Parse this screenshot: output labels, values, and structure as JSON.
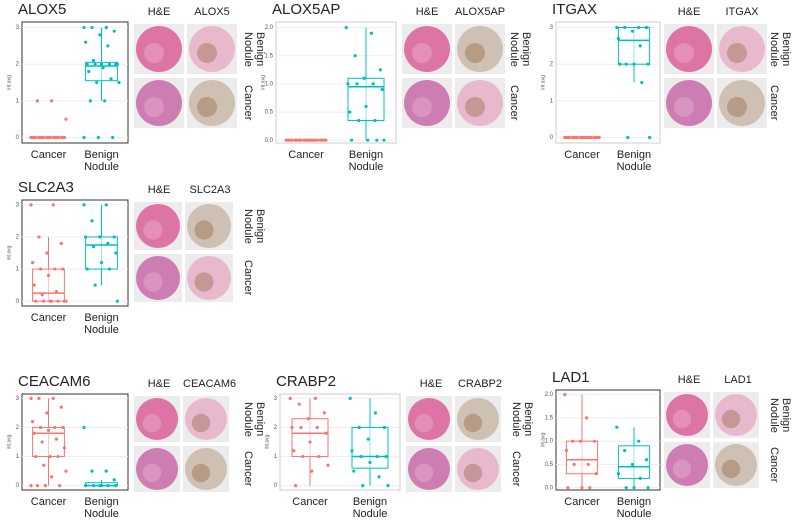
{
  "chart_data": [
    {
      "type": "box",
      "title": "ALOX5",
      "ylabel": "int.avg",
      "categories": [
        "Cancer",
        "Benign Nodule"
      ],
      "ylim": [
        -0.15,
        3.15
      ],
      "yticks": [
        0,
        1,
        2,
        3
      ],
      "grid": true,
      "boxes": [
        {
          "color": "#f8766d",
          "q1": 0,
          "median": 0,
          "q3": 0,
          "whisker_low": 0,
          "whisker_high": 0,
          "points": [
            0,
            0,
            0,
            0,
            0,
            0,
            0,
            0,
            0,
            0,
            0,
            0,
            0,
            0,
            0,
            0,
            0,
            0,
            0.5,
            1,
            1
          ]
        },
        {
          "color": "#00bfc4",
          "q1": 1.55,
          "median": 1.95,
          "q3": 2.05,
          "whisker_low": 1,
          "whisker_high": 3,
          "points": [
            3,
            3,
            3,
            2.9,
            2.8,
            2.6,
            2.5,
            2.1,
            2,
            2,
            2,
            2,
            2,
            2,
            1.9,
            1.8,
            1.6,
            1.5,
            1.5,
            1,
            1,
            0,
            0,
            0
          ]
        }
      ],
      "image_columns": [
        "H&E",
        "ALOX5"
      ],
      "image_rows": [
        "Benign Nodule",
        "Cancer"
      ]
    },
    {
      "type": "box",
      "title": "ALOX5AP",
      "ylabel": "int.avg",
      "categories": [
        "Cancer",
        "Benign Nodule"
      ],
      "ylim": [
        -0.05,
        2.1
      ],
      "yticks": [
        {
          "value": 0,
          "label": "0.0"
        },
        {
          "value": 0.5,
          "label": "0.5"
        },
        {
          "value": 1,
          "label": "1.0"
        },
        {
          "value": 1.5,
          "label": "1.5"
        },
        {
          "value": 2,
          "label": "2.0"
        }
      ],
      "grid": true,
      "boxes": [
        {
          "color": "#f8766d",
          "q1": 0,
          "median": 0,
          "q3": 0,
          "whisker_low": 0,
          "whisker_high": 0,
          "points": [
            0,
            0,
            0,
            0,
            0,
            0,
            0,
            0,
            0,
            0,
            0,
            0,
            0,
            0,
            0,
            0,
            0,
            0,
            0,
            0
          ]
        },
        {
          "color": "#00bfc4",
          "q1": 0.35,
          "median": 0.95,
          "q3": 1.1,
          "whisker_low": 0,
          "whisker_high": 2,
          "points": [
            2,
            1.9,
            1.5,
            1.25,
            1.1,
            1,
            1,
            1,
            0.9,
            0.6,
            0.5,
            0.35,
            0.35,
            0,
            0,
            0,
            0
          ]
        }
      ],
      "image_columns": [
        "H&E",
        "ALOX5AP"
      ],
      "image_rows": [
        "Benign Nodule",
        "Cancer"
      ]
    },
    {
      "type": "box",
      "title": "ITGAX",
      "ylabel": "int.avg",
      "categories": [
        "Cancer",
        "Benign Nodule"
      ],
      "ylim": [
        -0.15,
        3.15
      ],
      "yticks": [
        0,
        1,
        2,
        3
      ],
      "grid": true,
      "boxes": [
        {
          "color": "#f8766d",
          "q1": 0,
          "median": 0,
          "q3": 0,
          "whisker_low": 0,
          "whisker_high": 0,
          "points": [
            0,
            0,
            0,
            0,
            0,
            0,
            0,
            0,
            0,
            0,
            0,
            0,
            0,
            0,
            0,
            0,
            0,
            0,
            0,
            0
          ]
        },
        {
          "color": "#00bfc4",
          "q1": 2,
          "median": 2.65,
          "q3": 3,
          "whisker_low": 1.5,
          "whisker_high": 3,
          "points": [
            3,
            3,
            3,
            3,
            2.9,
            2.7,
            2.5,
            2,
            2,
            2,
            2,
            1.5,
            0,
            0
          ]
        }
      ],
      "image_columns": [
        "H&E",
        "ITGAX"
      ],
      "image_rows": [
        "Benign Nodule",
        "Cancer"
      ]
    },
    {
      "type": "box",
      "title": "SLC2A3",
      "ylabel": "int.avg",
      "categories": [
        "Cancer",
        "Benign Nodule"
      ],
      "ylim": [
        -0.15,
        3.15
      ],
      "yticks": [
        0,
        1,
        2,
        3
      ],
      "grid": true,
      "boxes": [
        {
          "color": "#f8766d",
          "q1": 0,
          "median": 0.25,
          "q3": 1,
          "whisker_low": 0,
          "whisker_high": 2,
          "points": [
            3,
            3,
            2,
            1.8,
            1.5,
            1.2,
            1,
            1,
            1,
            0.8,
            0.5,
            0.3,
            0.2,
            0,
            0,
            0,
            0,
            0,
            0,
            0
          ]
        },
        {
          "color": "#00bfc4",
          "q1": 1,
          "median": 1.75,
          "q3": 2,
          "whisker_low": 0.5,
          "whisker_high": 3,
          "points": [
            3,
            3,
            2.5,
            2,
            2,
            2,
            1.8,
            1.7,
            1.5,
            1.2,
            1,
            1,
            0.5,
            0
          ]
        }
      ],
      "image_columns": [
        "H&E",
        "SLC2A3"
      ],
      "image_rows": [
        "Benign Nodule",
        "Cancer"
      ]
    },
    {
      "type": "box",
      "title": "CEACAM6",
      "ylabel": "int.avg",
      "categories": [
        "Cancer",
        "Benign Nodule"
      ],
      "ylim": [
        -0.15,
        3.15
      ],
      "yticks": [
        0,
        1,
        2,
        3
      ],
      "grid": true,
      "boxes": [
        {
          "color": "#f8766d",
          "q1": 1,
          "median": 1.8,
          "q3": 2,
          "whisker_low": 0,
          "whisker_high": 3,
          "points": [
            3,
            3,
            3,
            2.7,
            2.5,
            2.2,
            2,
            2,
            2,
            1.9,
            1.8,
            1.6,
            1.5,
            1.3,
            1,
            1,
            1,
            0.7,
            0.5,
            0.3,
            0,
            0,
            0,
            0
          ]
        },
        {
          "color": "#00bfc4",
          "q1": 0,
          "median": 0,
          "q3": 0.1,
          "whisker_low": 0,
          "whisker_high": 0.2,
          "points": [
            2,
            0.5,
            0.5,
            0.2,
            0,
            0,
            0,
            0,
            0,
            0
          ]
        }
      ],
      "image_columns": [
        "H&E",
        "CEACAM6"
      ],
      "image_rows": [
        "Benign Nodule",
        "Cancer"
      ]
    },
    {
      "type": "box",
      "title": "CRABP2",
      "ylabel": "int.avg",
      "categories": [
        "Cancer",
        "Benign Nodule"
      ],
      "ylim": [
        -0.15,
        3.15
      ],
      "yticks": [
        0,
        1,
        2,
        3
      ],
      "grid": true,
      "boxes": [
        {
          "color": "#f8766d",
          "q1": 1,
          "median": 1.8,
          "q3": 2.3,
          "whisker_low": 0,
          "whisker_high": 3,
          "points": [
            3,
            3,
            2.8,
            2.5,
            2.3,
            2,
            2,
            2,
            1.8,
            1.5,
            1.2,
            1,
            1,
            0.7,
            0.5,
            0
          ]
        },
        {
          "color": "#00bfc4",
          "q1": 0.6,
          "median": 1,
          "q3": 2,
          "whisker_low": 0,
          "whisker_high": 3,
          "points": [
            3,
            2.5,
            2,
            2,
            1.6,
            1.2,
            1,
            1,
            1,
            0.8,
            0.5,
            0.3,
            0,
            0
          ]
        }
      ],
      "image_columns": [
        "H&E",
        "CRABP2"
      ],
      "image_rows": [
        "Benign Nodule",
        "Cancer"
      ]
    },
    {
      "type": "box",
      "title": "LAD1",
      "ylabel": "int.avg",
      "categories": [
        "Cancer",
        "Benign Nodule"
      ],
      "ylim": [
        -0.05,
        2.1
      ],
      "yticks": [
        {
          "value": 0,
          "label": "0.0"
        },
        {
          "value": 0.5,
          "label": "0.5"
        },
        {
          "value": 1,
          "label": "1.0"
        },
        {
          "value": 1.5,
          "label": "1.5"
        },
        {
          "value": 2,
          "label": "2.0"
        }
      ],
      "grid": true,
      "boxes": [
        {
          "color": "#f8766d",
          "q1": 0.3,
          "median": 0.6,
          "q3": 1,
          "whisker_low": 0,
          "whisker_high": 2,
          "points": [
            2,
            1.5,
            1,
            1,
            1,
            0.8,
            0.5,
            0.5,
            0.3,
            0,
            0,
            0
          ]
        },
        {
          "color": "#00bfc4",
          "q1": 0.2,
          "median": 0.45,
          "q3": 0.9,
          "whisker_low": 0,
          "whisker_high": 1.3,
          "points": [
            1.3,
            1,
            0.8,
            0.6,
            0.5,
            0.3,
            0.2,
            0,
            0,
            0
          ]
        }
      ],
      "image_columns": [
        "H&E",
        "LAD1"
      ],
      "image_rows": [
        "Benign Nodule",
        "Cancer"
      ]
    }
  ]
}
